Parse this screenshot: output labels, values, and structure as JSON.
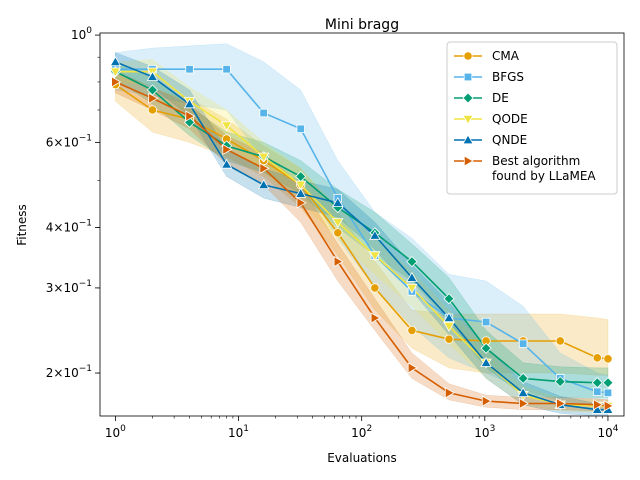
{
  "chart_data": {
    "type": "line",
    "title": "Mini bragg",
    "xlabel": "Evaluations",
    "ylabel": "Fitness",
    "xscale": "log",
    "yscale": "log",
    "xlim": [
      0.75,
      13500
    ],
    "ylim": [
      0.163,
      1.01
    ],
    "x_ticks": [
      {
        "value": 1,
        "base": "10",
        "exp": "0"
      },
      {
        "value": 10,
        "base": "10",
        "exp": "1"
      },
      {
        "value": 100,
        "base": "10",
        "exp": "2"
      },
      {
        "value": 1000,
        "base": "10",
        "exp": "3"
      },
      {
        "value": 10000,
        "base": "10",
        "exp": "4"
      }
    ],
    "y_ticks": [
      {
        "value": 1.0,
        "mant": "",
        "base": "10",
        "exp": "0"
      },
      {
        "value": 0.6,
        "mant": "6×",
        "base": "10",
        "exp": "−1"
      },
      {
        "value": 0.4,
        "mant": "4×",
        "base": "10",
        "exp": "−1"
      },
      {
        "value": 0.3,
        "mant": "3×",
        "base": "10",
        "exp": "−1"
      },
      {
        "value": 0.2,
        "mant": "2×",
        "base": "10",
        "exp": "−1"
      }
    ],
    "legend_position": "upper-right",
    "series": [
      {
        "name": "CMA",
        "color": "#E69F00",
        "marker": "circle",
        "x": [
          1,
          2,
          4,
          8,
          16,
          32,
          64,
          128,
          256,
          512,
          1024,
          2048,
          4096,
          8192,
          10000
        ],
        "y": [
          0.79,
          0.7,
          0.67,
          0.61,
          0.55,
          0.49,
          0.39,
          0.3,
          0.245,
          0.235,
          0.233,
          0.233,
          0.233,
          0.215,
          0.214
        ],
        "lower": [
          0.73,
          0.63,
          0.6,
          0.56,
          0.51,
          0.44,
          0.35,
          0.27,
          0.225,
          0.205,
          0.2,
          0.2,
          0.2,
          0.198,
          0.198
        ],
        "upper": [
          0.85,
          0.77,
          0.74,
          0.67,
          0.59,
          0.53,
          0.43,
          0.34,
          0.27,
          0.265,
          0.265,
          0.265,
          0.265,
          0.26,
          0.258
        ]
      },
      {
        "name": "BFGS",
        "color": "#56B4E9",
        "marker": "square",
        "x": [
          1,
          2,
          4,
          8,
          16,
          32,
          64,
          128,
          256,
          512,
          1024,
          2048,
          4096,
          8192,
          10000
        ],
        "y": [
          0.85,
          0.85,
          0.85,
          0.85,
          0.69,
          0.64,
          0.46,
          0.35,
          0.295,
          0.26,
          0.255,
          0.23,
          0.195,
          0.183,
          0.182
        ],
        "lower": [
          0.77,
          0.75,
          0.72,
          0.7,
          0.55,
          0.5,
          0.38,
          0.3,
          0.25,
          0.215,
          0.2,
          0.185,
          0.175,
          0.172,
          0.172
        ],
        "upper": [
          0.92,
          0.94,
          0.95,
          0.96,
          0.88,
          0.77,
          0.55,
          0.43,
          0.38,
          0.32,
          0.31,
          0.275,
          0.22,
          0.2,
          0.198
        ]
      },
      {
        "name": "DE",
        "color": "#009E73",
        "marker": "diamond",
        "x": [
          1,
          2,
          4,
          8,
          16,
          32,
          64,
          128,
          256,
          512,
          1024,
          2048,
          4096,
          8192,
          10000
        ],
        "y": [
          0.84,
          0.77,
          0.66,
          0.59,
          0.56,
          0.51,
          0.44,
          0.39,
          0.34,
          0.285,
          0.225,
          0.195,
          0.192,
          0.191,
          0.191
        ],
        "lower": [
          0.81,
          0.72,
          0.62,
          0.55,
          0.52,
          0.47,
          0.4,
          0.35,
          0.31,
          0.255,
          0.205,
          0.18,
          0.178,
          0.178,
          0.178
        ],
        "upper": [
          0.87,
          0.82,
          0.71,
          0.63,
          0.6,
          0.55,
          0.48,
          0.43,
          0.37,
          0.315,
          0.245,
          0.21,
          0.206,
          0.205,
          0.205
        ]
      },
      {
        "name": "QODE",
        "color": "#F0E442",
        "marker": "triangle-down",
        "x": [
          1,
          2,
          4,
          8,
          16,
          32,
          64,
          128,
          256,
          512,
          1024,
          2048,
          4096,
          8192,
          10000
        ],
        "y": [
          0.84,
          0.84,
          0.73,
          0.65,
          0.56,
          0.49,
          0.41,
          0.35,
          0.3,
          0.25,
          0.21,
          0.18,
          0.172,
          0.171,
          0.171
        ],
        "lower": [
          0.8,
          0.79,
          0.68,
          0.6,
          0.52,
          0.45,
          0.38,
          0.32,
          0.275,
          0.23,
          0.195,
          0.172,
          0.167,
          0.166,
          0.166
        ],
        "upper": [
          0.88,
          0.89,
          0.78,
          0.7,
          0.6,
          0.53,
          0.44,
          0.38,
          0.325,
          0.27,
          0.225,
          0.188,
          0.177,
          0.176,
          0.176
        ]
      },
      {
        "name": "QNDE",
        "color": "#0072B2",
        "marker": "triangle-up",
        "x": [
          1,
          2,
          4,
          8,
          16,
          32,
          64,
          128,
          256,
          512,
          1024,
          2048,
          4096,
          8192,
          10000
        ],
        "y": [
          0.88,
          0.82,
          0.72,
          0.54,
          0.49,
          0.47,
          0.45,
          0.385,
          0.315,
          0.26,
          0.21,
          0.182,
          0.172,
          0.168,
          0.168
        ],
        "lower": [
          0.84,
          0.78,
          0.68,
          0.51,
          0.46,
          0.44,
          0.42,
          0.36,
          0.295,
          0.24,
          0.195,
          0.172,
          0.165,
          0.163,
          0.163
        ],
        "upper": [
          0.92,
          0.86,
          0.77,
          0.58,
          0.53,
          0.5,
          0.48,
          0.41,
          0.335,
          0.28,
          0.225,
          0.192,
          0.179,
          0.173,
          0.173
        ]
      },
      {
        "name": "Best algorithm found by LLaMEA",
        "label_lines": [
          "Best algorithm",
          "found by LLaMEA"
        ],
        "color": "#D55E00",
        "marker": "triangle-right",
        "x": [
          1,
          2,
          4,
          8,
          16,
          32,
          64,
          128,
          256,
          512,
          1024,
          2048,
          4096,
          8192,
          10000
        ],
        "y": [
          0.8,
          0.74,
          0.68,
          0.58,
          0.53,
          0.45,
          0.34,
          0.26,
          0.205,
          0.182,
          0.175,
          0.173,
          0.173,
          0.172,
          0.171
        ],
        "lower": [
          0.76,
          0.7,
          0.64,
          0.54,
          0.49,
          0.41,
          0.31,
          0.245,
          0.195,
          0.176,
          0.17,
          0.168,
          0.168,
          0.167,
          0.167
        ],
        "upper": [
          0.84,
          0.78,
          0.72,
          0.62,
          0.57,
          0.49,
          0.37,
          0.285,
          0.22,
          0.19,
          0.18,
          0.178,
          0.178,
          0.177,
          0.176
        ]
      }
    ]
  }
}
